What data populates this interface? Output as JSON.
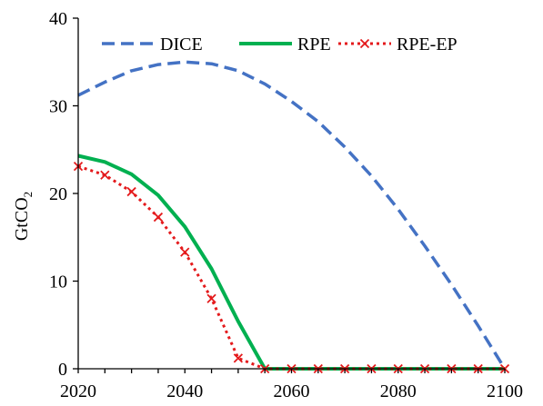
{
  "chart_data": {
    "type": "line",
    "title": "",
    "xlabel": "",
    "ylabel": "GtCO",
    "ylabel_subscript": "2",
    "xlim": [
      2020,
      2100
    ],
    "ylim": [
      0,
      40
    ],
    "x_ticks": [
      "2020",
      "2040",
      "2060",
      "2080",
      "2100"
    ],
    "y_ticks": [
      "0",
      "10",
      "20",
      "30",
      "40"
    ],
    "grid": false,
    "legend_position": "top",
    "series": [
      {
        "name": "DICE",
        "color": "#4472C4",
        "style": "dashed",
        "x": [
          2020,
          2025,
          2030,
          2035,
          2040,
          2045,
          2050,
          2055,
          2060,
          2065,
          2070,
          2075,
          2080,
          2085,
          2090,
          2095,
          2100
        ],
        "y": [
          31.2,
          32.7,
          34.0,
          34.7,
          35.0,
          34.8,
          34.0,
          32.5,
          30.5,
          28.2,
          25.3,
          22.0,
          18.2,
          14.0,
          9.6,
          4.9,
          0.0
        ]
      },
      {
        "name": "RPE",
        "color": "#00B050",
        "style": "solid",
        "x": [
          2020,
          2025,
          2030,
          2035,
          2040,
          2045,
          2050,
          2055,
          2060,
          2065,
          2070,
          2075,
          2080,
          2085,
          2090,
          2095,
          2100
        ],
        "y": [
          24.3,
          23.6,
          22.2,
          19.8,
          16.2,
          11.4,
          5.4,
          0.0,
          0.0,
          0.0,
          0.0,
          0.0,
          0.0,
          0.0,
          0.0,
          0.0,
          0.0
        ]
      },
      {
        "name": "RPE-EP",
        "color": "#E41A1C",
        "style": "dotted",
        "marker": "x",
        "x": [
          2020,
          2025,
          2030,
          2035,
          2040,
          2045,
          2050,
          2055,
          2060,
          2065,
          2070,
          2075,
          2080,
          2085,
          2090,
          2095,
          2100
        ],
        "y": [
          23.1,
          22.1,
          20.2,
          17.3,
          13.3,
          8.0,
          1.2,
          0.0,
          0.0,
          0.0,
          0.0,
          0.0,
          0.0,
          0.0,
          0.0,
          0.0,
          0.0
        ]
      }
    ]
  }
}
